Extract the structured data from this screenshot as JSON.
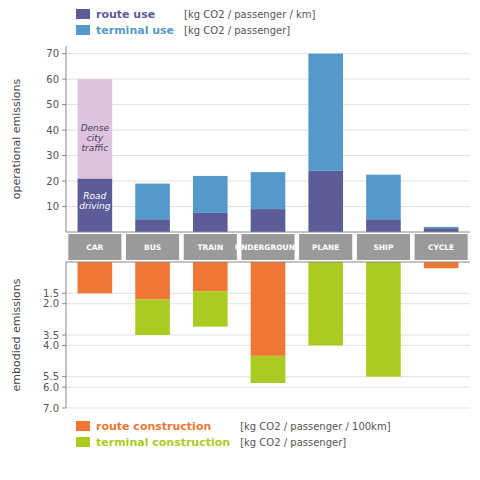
{
  "chart_data": [
    {
      "type": "bar",
      "stacked": true,
      "ylabel": "operational emissions",
      "categories": [
        "CAR",
        "BUS",
        "TRAIN",
        "UNDERGROUND",
        "PLANE",
        "SHIP",
        "CYCLE"
      ],
      "series": [
        {
          "name": "route use",
          "unit": "[kg CO2 / passenger / km]",
          "color": "#5c5c99",
          "values": [
            21,
            5,
            7.5,
            9,
            24,
            5,
            1.5
          ]
        },
        {
          "name": "terminal use",
          "unit": "[kg CO2 / passenger]",
          "color": "#5599cc",
          "values": [
            0,
            14,
            14.5,
            14.5,
            46,
            17.5,
            0.5
          ]
        },
        {
          "color": "#d8b8d8",
          "values": [
            39,
            null,
            null,
            null,
            null,
            null,
            null
          ]
        }
      ],
      "annotations": [
        {
          "text": "Dense\ncity\ntraffic",
          "category": "CAR",
          "y": 43
        },
        {
          "text": "Road\ndriving",
          "category": "CAR",
          "y": 16
        }
      ],
      "ylim": [
        0,
        73
      ],
      "yticks": [
        10,
        20,
        30,
        40,
        50,
        60,
        70
      ],
      "grid": true,
      "legend": "top"
    },
    {
      "type": "bar",
      "stacked": true,
      "ylabel": "embodied emissions",
      "categories": [
        "CAR",
        "BUS",
        "TRAIN",
        "UNDERGROUND",
        "PLANE",
        "SHIP",
        "CYCLE"
      ],
      "series": [
        {
          "name": "route construction",
          "unit": "[kg CO2 / passenger / 100km]",
          "color": "#ee7733",
          "values": [
            1.5,
            1.8,
            1.4,
            4.5,
            0.0,
            0.0,
            0.3
          ]
        },
        {
          "name": "terminal construction",
          "unit": "[kg CO2 / passenger]",
          "color": "#aacc22",
          "values": [
            0.0,
            1.7,
            1.7,
            1.3,
            4.0,
            5.5,
            0.0
          ]
        }
      ],
      "ylim": [
        0,
        7.0
      ],
      "yticks": [
        1.5,
        {
          "value": 2.0,
          "label": "2.0"
        },
        3.5,
        {
          "value": 4.0,
          "label": "4.0"
        },
        5.5,
        {
          "value": 6.0,
          "label": "6.0"
        },
        {
          "value": 7.0,
          "label": "7.0"
        }
      ],
      "grid": true,
      "legend": "bottom"
    }
  ]
}
